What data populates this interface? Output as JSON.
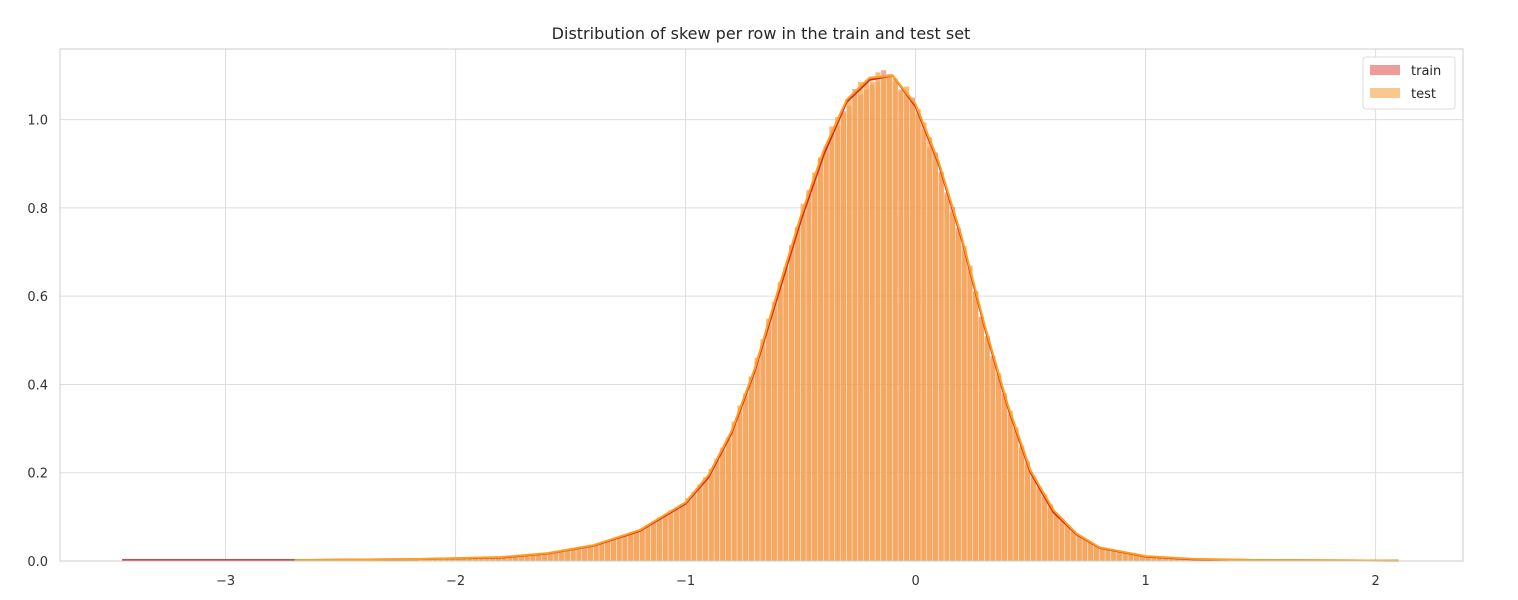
{
  "chart_data": {
    "type": "histogram",
    "title": "Distribution of skew per row in the train and test set",
    "xlabel": "",
    "ylabel": "",
    "xlim": [
      -3.72,
      2.38
    ],
    "ylim": [
      0.0,
      1.16
    ],
    "x_ticks": [
      -3,
      -2,
      -1,
      0,
      1,
      2
    ],
    "x_tick_labels": [
      "−3",
      "−2",
      "−1",
      "0",
      "1",
      "2"
    ],
    "y_ticks": [
      0.0,
      0.2,
      0.4,
      0.6,
      0.8,
      1.0
    ],
    "y_tick_labels": [
      "0.0",
      "0.2",
      "0.4",
      "0.6",
      "0.8",
      "1.0"
    ],
    "grid": true,
    "legend": {
      "position": "top-right",
      "entries": [
        "train",
        "test"
      ]
    },
    "series": [
      {
        "name": "train",
        "color": "#e8726c",
        "histogram": {
          "range": [
            -3.45,
            2.1
          ],
          "peak_x": -0.1,
          "peak_density": 1.1
        },
        "kde": {
          "x": [
            -3.45,
            -3.0,
            -2.7,
            -2.2,
            -1.8,
            -1.6,
            -1.4,
            -1.2,
            -1.0,
            -0.9,
            -0.8,
            -0.7,
            -0.6,
            -0.5,
            -0.4,
            -0.3,
            -0.2,
            -0.1,
            0.0,
            0.1,
            0.2,
            0.3,
            0.4,
            0.5,
            0.6,
            0.7,
            0.8,
            1.0,
            1.2,
            1.5,
            2.1
          ],
          "y": [
            0.002,
            0.002,
            0.002,
            0.004,
            0.008,
            0.017,
            0.035,
            0.068,
            0.13,
            0.19,
            0.29,
            0.43,
            0.6,
            0.77,
            0.92,
            1.04,
            1.09,
            1.1,
            1.03,
            0.9,
            0.73,
            0.53,
            0.35,
            0.2,
            0.11,
            0.06,
            0.03,
            0.01,
            0.004,
            0.002,
            0.001
          ]
        }
      },
      {
        "name": "test",
        "color": "#f5a442",
        "histogram": {
          "range": [
            -2.7,
            2.1
          ],
          "peak_x": -0.1,
          "peak_density": 1.1
        },
        "kde": {
          "x": [
            -2.7,
            -2.2,
            -1.8,
            -1.6,
            -1.4,
            -1.2,
            -1.0,
            -0.9,
            -0.8,
            -0.7,
            -0.6,
            -0.5,
            -0.4,
            -0.3,
            -0.2,
            -0.1,
            0.0,
            0.1,
            0.2,
            0.3,
            0.4,
            0.5,
            0.6,
            0.7,
            0.8,
            1.0,
            1.2,
            1.5,
            2.1
          ],
          "y": [
            0.002,
            0.004,
            0.009,
            0.018,
            0.036,
            0.07,
            0.133,
            0.195,
            0.295,
            0.435,
            0.61,
            0.78,
            0.93,
            1.045,
            1.095,
            1.1,
            1.035,
            0.905,
            0.735,
            0.535,
            0.355,
            0.205,
            0.115,
            0.062,
            0.031,
            0.011,
            0.005,
            0.002,
            0.001
          ]
        }
      }
    ]
  }
}
